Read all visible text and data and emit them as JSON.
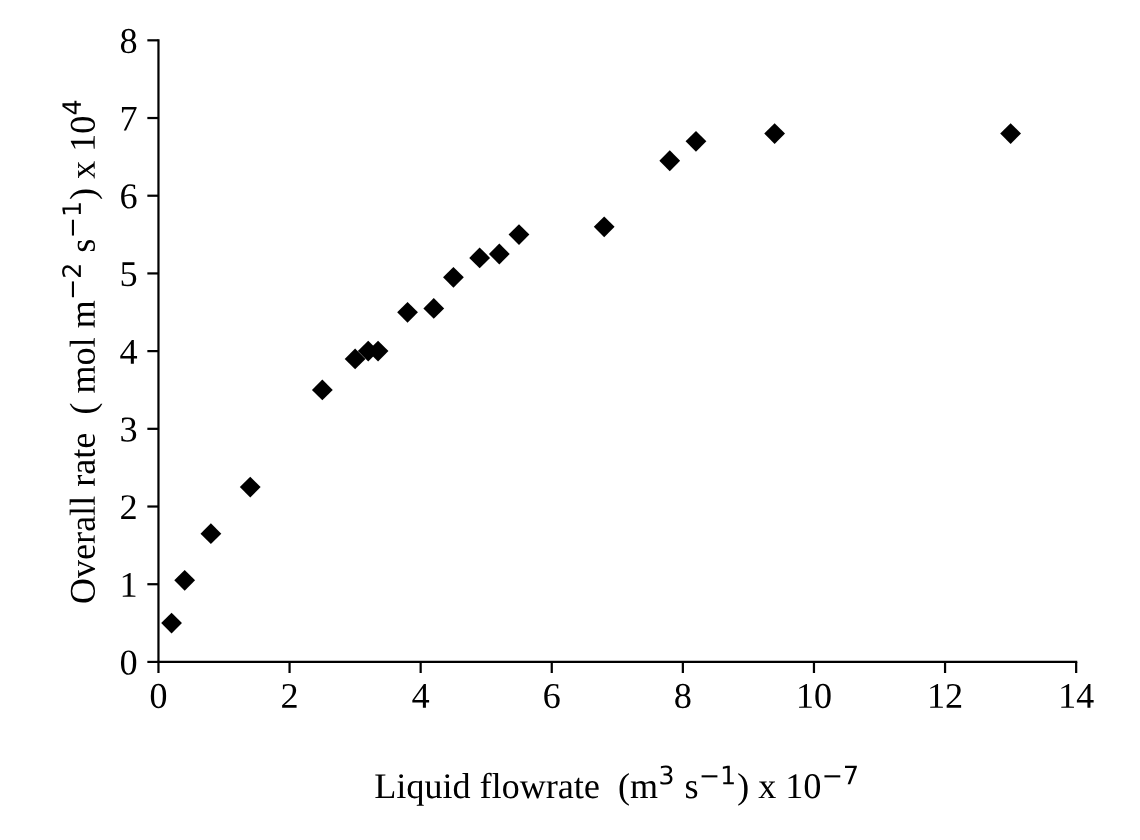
{
  "chart_data": {
    "type": "scatter",
    "xlabel": "Liquid flowrate  (m$^{3}$ s$^{−1}$) x 10$^{−7}$",
    "ylabel": "Overall rate  ( mol m$^{−2}$ s$^{−1}$) x 10$^{4}$",
    "x": [
      0.2,
      0.4,
      0.8,
      1.4,
      2.5,
      3.0,
      3.2,
      3.35,
      3.8,
      4.2,
      4.5,
      4.9,
      5.2,
      5.5,
      6.8,
      7.8,
      8.2,
      9.4,
      13.0
    ],
    "series": [
      {
        "color": "#000000",
        "values": [
          0.5,
          1.05,
          1.65,
          2.25,
          3.5,
          3.9,
          4.0,
          4.0,
          4.5,
          4.55,
          4.95,
          5.2,
          5.25,
          5.5,
          5.6,
          6.45,
          6.7,
          6.8,
          6.8
        ]
      }
    ],
    "xlim": [
      0,
      14
    ],
    "xticks": [
      0,
      2,
      4,
      6,
      8,
      10,
      12,
      14
    ],
    "ylim": [
      0,
      8
    ],
    "yticks": [
      0,
      1,
      2,
      3,
      4,
      5,
      6,
      7,
      8
    ],
    "marker": "diamond",
    "grid": false,
    "legend": false
  }
}
